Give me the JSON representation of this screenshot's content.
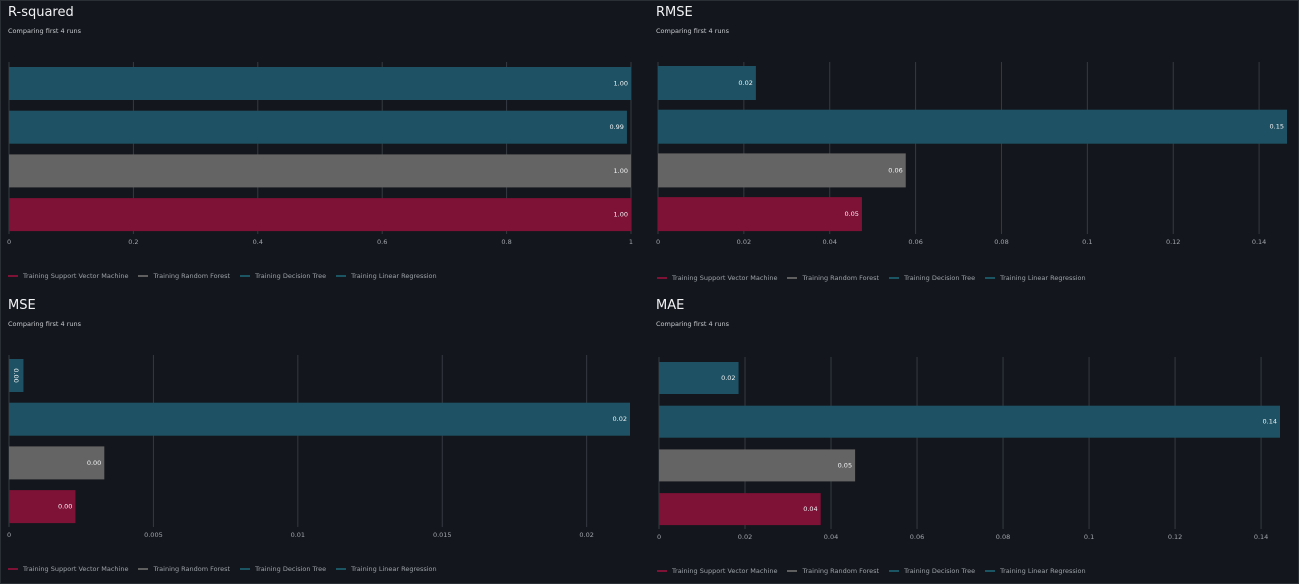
{
  "colors": {
    "svm": "#7e1136",
    "rf": "#646464",
    "dt": "#1d5163",
    "lr": "#1d5163",
    "grid": "#363a42",
    "axis_text": "#a2a6ad",
    "bar_label": "#f1f2f4"
  },
  "legend": [
    {
      "label": "Training Support Vector Machine",
      "color": "#7e1136"
    },
    {
      "label": "Training Random Forest",
      "color": "#5f5f5f"
    },
    {
      "label": "Training Decision Tree",
      "color": "#1b5462"
    },
    {
      "label": "Training Linear Regression",
      "color": "#1b5462"
    }
  ],
  "chart_data": [
    {
      "id": "r2",
      "type": "bar",
      "orientation": "horizontal",
      "title": "R-squared",
      "subtitle": "Comparing first 4 runs",
      "xlim": [
        0,
        1
      ],
      "ticks": [
        0,
        0.2,
        0.4,
        0.6,
        0.8,
        1
      ],
      "tick_labels": [
        "0",
        "0.2",
        "0.4",
        "0.6",
        "0.8",
        "1"
      ],
      "series": [
        {
          "name": "Training Linear Regression",
          "value": 1.0,
          "label": "1.00",
          "color": "#1d5163"
        },
        {
          "name": "Training Decision Tree",
          "value": 0.9935,
          "label": "0.99",
          "color": "#1d5163"
        },
        {
          "name": "Training Random Forest",
          "value": 1.0,
          "label": "1.00",
          "color": "#646464"
        },
        {
          "name": "Training Support Vector Machine",
          "value": 1.0,
          "label": "1.00",
          "color": "#7e1136"
        }
      ]
    },
    {
      "id": "rmse",
      "type": "bar",
      "orientation": "horizontal",
      "title": "RMSE",
      "subtitle": "Comparing first 4 runs",
      "xlim": [
        0,
        0.1465
      ],
      "ticks": [
        0,
        0.02,
        0.04,
        0.06,
        0.08,
        0.1,
        0.12,
        0.14
      ],
      "tick_labels": [
        "0",
        "0.02",
        "0.04",
        "0.06",
        "0.08",
        "0.1",
        "0.12",
        "0.14"
      ],
      "series": [
        {
          "name": "Training Linear Regression",
          "value": 0.0228,
          "label": "0.02",
          "color": "#1d5163"
        },
        {
          "name": "Training Decision Tree",
          "value": 0.1465,
          "label": "0.15",
          "color": "#1d5163"
        },
        {
          "name": "Training Random Forest",
          "value": 0.0577,
          "label": "0.06",
          "color": "#646464"
        },
        {
          "name": "Training Support Vector Machine",
          "value": 0.0475,
          "label": "0.05",
          "color": "#7e1136"
        }
      ]
    },
    {
      "id": "mse",
      "type": "bar",
      "orientation": "horizontal",
      "title": "MSE",
      "subtitle": "Comparing first 4 runs",
      "xlim": [
        0,
        0.0215
      ],
      "ticks": [
        0,
        0.005,
        0.01,
        0.015,
        0.02
      ],
      "tick_labels": [
        "0",
        "0.005",
        "0.01",
        "0.015",
        "0.02"
      ],
      "series": [
        {
          "name": "Training Linear Regression",
          "value": 0.0005,
          "label": "0.00",
          "color": "#1d5163",
          "rotated": true
        },
        {
          "name": "Training Decision Tree",
          "value": 0.0215,
          "label": "0.02",
          "color": "#1d5163"
        },
        {
          "name": "Training Random Forest",
          "value": 0.0033,
          "label": "0.00",
          "color": "#646464"
        },
        {
          "name": "Training Support Vector Machine",
          "value": 0.0023,
          "label": "0.00",
          "color": "#7e1136"
        }
      ]
    },
    {
      "id": "mae",
      "type": "bar",
      "orientation": "horizontal",
      "title": "MAE",
      "subtitle": "Comparing first 4 runs",
      "xlim": [
        0,
        0.1444
      ],
      "ticks": [
        0,
        0.02,
        0.04,
        0.06,
        0.08,
        0.1,
        0.12,
        0.14
      ],
      "tick_labels": [
        "0",
        "0.02",
        "0.04",
        "0.06",
        "0.08",
        "0.1",
        "0.12",
        "0.14"
      ],
      "series": [
        {
          "name": "Training Linear Regression",
          "value": 0.0185,
          "label": "0.02",
          "color": "#1d5163"
        },
        {
          "name": "Training Decision Tree",
          "value": 0.1444,
          "label": "0.14",
          "color": "#1d5163"
        },
        {
          "name": "Training Random Forest",
          "value": 0.0456,
          "label": "0.05",
          "color": "#646464"
        },
        {
          "name": "Training Support Vector Machine",
          "value": 0.0376,
          "label": "0.04",
          "color": "#7e1136"
        }
      ]
    }
  ]
}
